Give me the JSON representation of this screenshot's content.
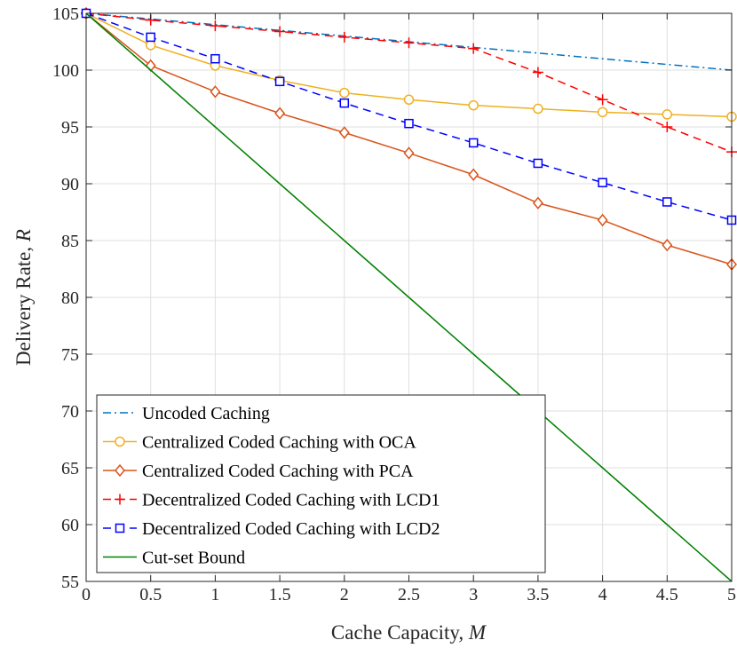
{
  "chart_data": {
    "type": "line",
    "xlabel": "Cache Capacity, ",
    "xlabel_var": "M",
    "ylabel": "Delivery Rate, ",
    "ylabel_var": "R",
    "xlim": [
      0,
      5
    ],
    "ylim": [
      55,
      105
    ],
    "xticks": [
      "0",
      "0.5",
      "1",
      "1.5",
      "2",
      "2.5",
      "3",
      "3.5",
      "4",
      "4.5",
      "5"
    ],
    "yticks": [
      "55",
      "60",
      "65",
      "70",
      "75",
      "80",
      "85",
      "90",
      "95",
      "100",
      "105"
    ],
    "grid": true,
    "legend_position": "lower-left",
    "x": [
      0,
      0.5,
      1,
      1.5,
      2,
      2.5,
      3,
      3.5,
      4,
      4.5,
      5
    ],
    "series": [
      {
        "name": "Uncoded Caching",
        "color": "#0072BD",
        "line_style": "dashdot",
        "marker": "none",
        "values": [
          105,
          104.5,
          104,
          103.5,
          103,
          102.5,
          102,
          101.5,
          101,
          100.5,
          100
        ]
      },
      {
        "name": "Centralized Coded Caching with OCA",
        "color": "#EDB120",
        "line_style": "solid",
        "marker": "circle",
        "values": [
          105,
          102.2,
          100.4,
          99.1,
          98.0,
          97.4,
          96.9,
          96.6,
          96.3,
          96.1,
          95.9
        ]
      },
      {
        "name": "Centralized Coded Caching with PCA",
        "color": "#D95319",
        "line_style": "solid",
        "marker": "diamond",
        "values": [
          105,
          100.4,
          98.1,
          96.2,
          94.5,
          92.7,
          90.8,
          88.3,
          86.8,
          84.6,
          82.9
        ]
      },
      {
        "name": "Decentralized Coded Caching with LCD1",
        "color": "#FF0000",
        "line_style": "dashed",
        "marker": "plus",
        "values": [
          105,
          104.4,
          103.9,
          103.4,
          102.9,
          102.4,
          101.9,
          99.8,
          97.4,
          95.0,
          92.8
        ]
      },
      {
        "name": "Decentralized Coded Caching with LCD2",
        "color": "#0000FF",
        "line_style": "dashed",
        "marker": "square",
        "values": [
          105,
          102.9,
          101.0,
          99.0,
          97.1,
          95.3,
          93.6,
          91.8,
          90.1,
          88.4,
          86.8
        ]
      },
      {
        "name": "Cut-set Bound",
        "color": "#008000",
        "line_style": "solid",
        "marker": "none",
        "values": [
          105,
          100,
          95,
          90,
          85,
          80,
          75,
          70,
          65,
          60,
          55
        ]
      }
    ]
  }
}
